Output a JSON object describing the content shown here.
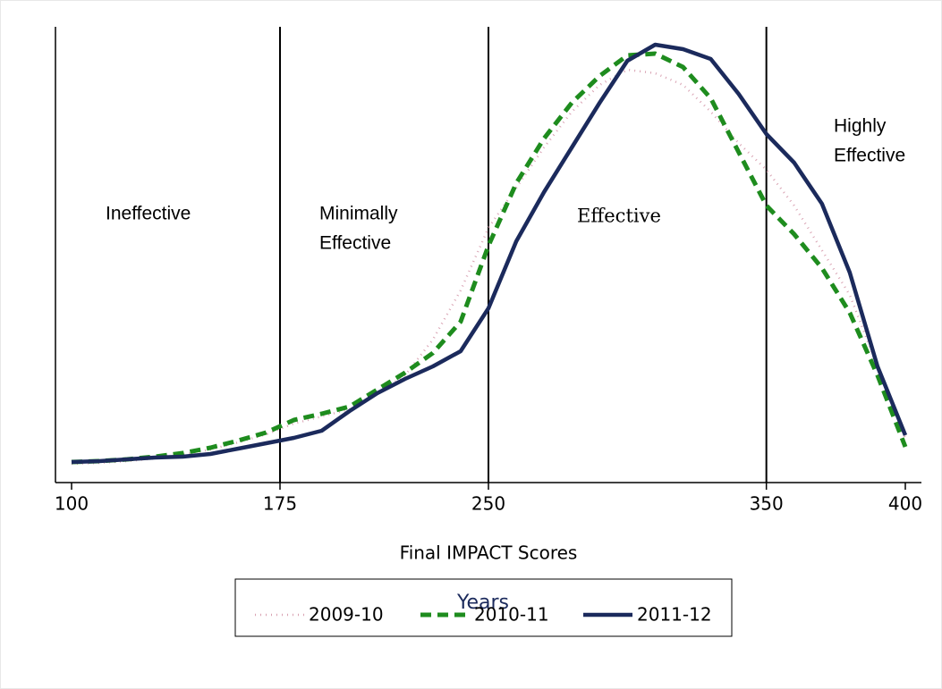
{
  "chart_data": {
    "type": "line",
    "x_label": "Final IMPACT Scores",
    "x": [
      100,
      110,
      120,
      130,
      140,
      150,
      160,
      170,
      180,
      190,
      200,
      210,
      220,
      230,
      240,
      250,
      260,
      270,
      280,
      290,
      300,
      310,
      320,
      330,
      340,
      350,
      360,
      370,
      380,
      390,
      400
    ],
    "series": [
      {
        "name": "2009-10",
        "color": "#d9a3b3",
        "style": "dotted",
        "values": [
          21,
          22,
          24,
          27,
          31,
          37,
          45,
          54,
          66,
          74,
          82,
          100,
          120,
          160,
          215,
          285,
          330,
          375,
          415,
          445,
          462,
          458,
          445,
          415,
          380,
          350,
          310,
          260,
          210,
          130,
          50
        ]
      },
      {
        "name": "2010-11",
        "color": "#1e8c1e",
        "style": "dashed",
        "values": [
          23,
          24,
          26,
          29,
          33,
          39,
          47,
          56,
          70,
          77,
          85,
          104,
          123,
          145,
          180,
          265,
          335,
          385,
          425,
          455,
          478,
          480,
          465,
          430,
          370,
          310,
          278,
          240,
          190,
          120,
          40
        ]
      },
      {
        "name": "2011-12",
        "color": "#1b2a5c",
        "style": "solid",
        "values": [
          23,
          24,
          26,
          28,
          29,
          32,
          38,
          44,
          50,
          58,
          80,
          100,
          116,
          130,
          147,
          195,
          270,
          325,
          375,
          425,
          472,
          490,
          485,
          474,
          435,
          390,
          358,
          312,
          235,
          130,
          53
        ]
      }
    ],
    "xlim": [
      100,
      400
    ],
    "xticks": [
      100,
      175,
      250,
      350,
      400
    ],
    "ylim": [
      0,
      510
    ],
    "reference_lines": [
      175,
      250,
      350
    ],
    "annotations": [
      {
        "lines": [
          "Ineffective"
        ]
      },
      {
        "lines": [
          "Minimally",
          "Effective"
        ]
      },
      {
        "lines": [
          "Effective"
        ]
      },
      {
        "lines": [
          "Highly",
          "Effective"
        ]
      }
    ],
    "legend_title": "Years",
    "legend_position": "bottom"
  }
}
